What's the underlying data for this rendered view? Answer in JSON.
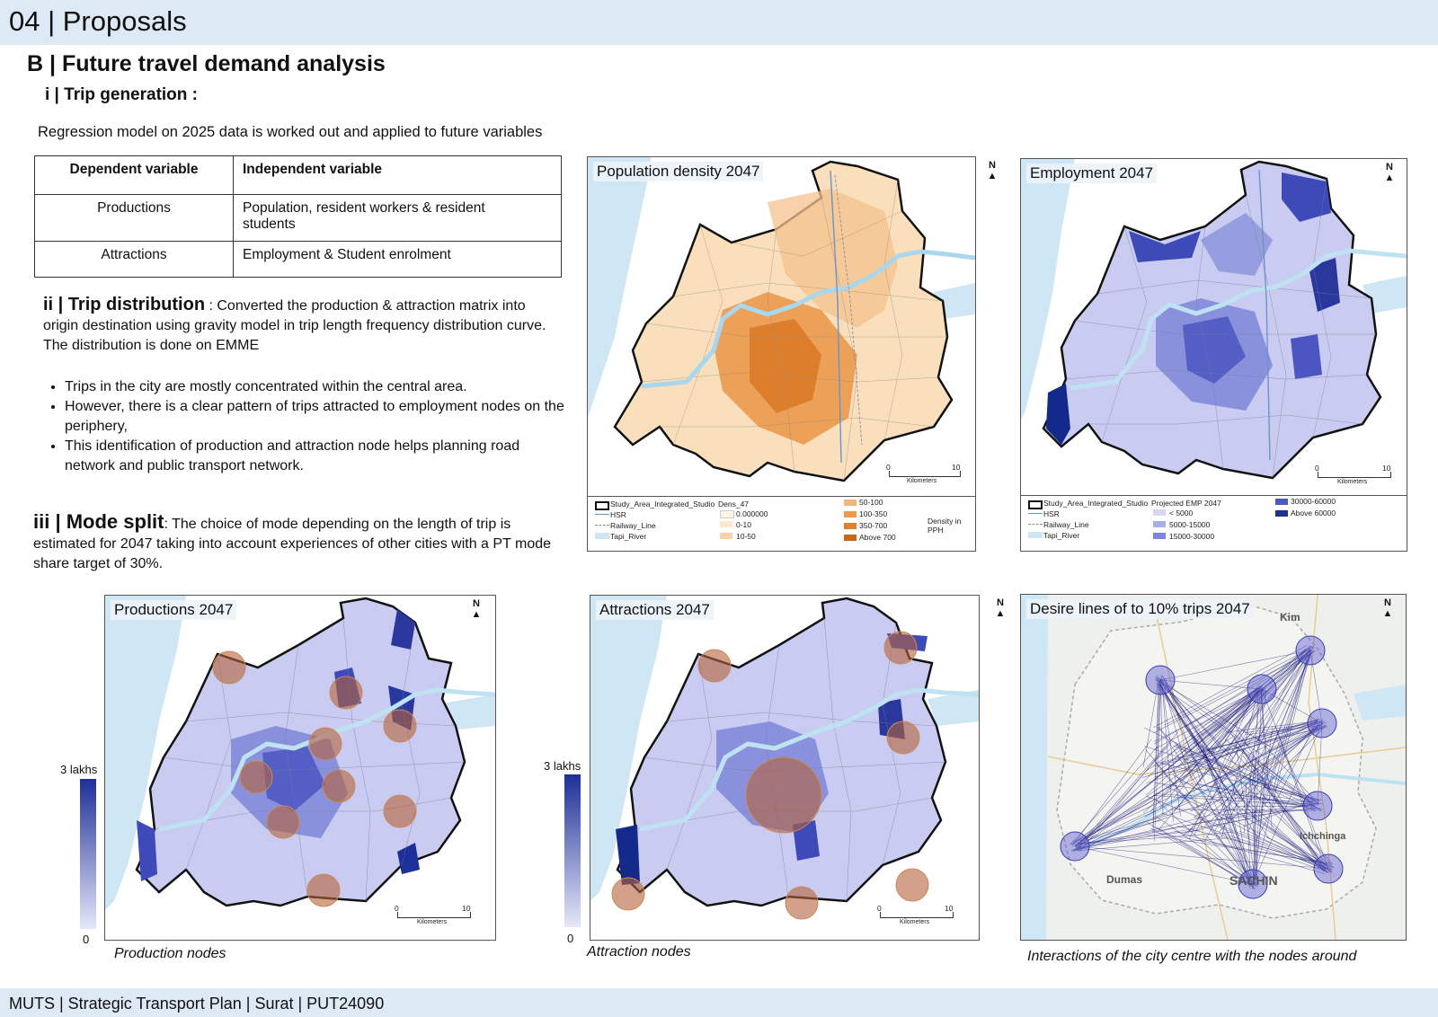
{
  "header": {
    "title": "04 | Proposals"
  },
  "section": {
    "title": "B  | Future travel demand analysis"
  },
  "trip_generation": {
    "title": "i | Trip generation :",
    "description": "Regression model on 2025 data is worked out and applied to future variables",
    "table": {
      "headers": [
        "Dependent variable",
        "Independent variable"
      ],
      "rows": [
        [
          "Productions",
          "Population, resident workers & resident students"
        ],
        [
          "Attractions",
          "Employment & Student enrolment"
        ]
      ]
    }
  },
  "trip_distribution": {
    "title": "ii | Trip distribution",
    "text": " : Converted the production & attraction matrix into origin destination using gravity model in trip length frequency distribution curve. The distribution is done on EMME",
    "bullets": [
      "Trips in the city are mostly concentrated within the central area.",
      "However, there is a clear pattern of trips attracted to employment nodes on the periphery,",
      "This identification of production and attraction node helps planning road network and public transport network."
    ]
  },
  "mode_split": {
    "title": "iii | Mode split",
    "text": ": The choice of mode depending on the length of trip is estimated for 2047 taking into account experiences of other cities with a PT mode share target of 30%."
  },
  "maps": {
    "population": {
      "title": "Population density 2047",
      "north": "N",
      "scale": {
        "start": "0",
        "end": "10",
        "unit": "Kilometers"
      },
      "legend": {
        "study_area": "Study_Area_Integrated_Studio",
        "hsr": "HSR",
        "railway": "Railway_Line",
        "river": "Tapi_River",
        "class_title": "Dens_47",
        "classes": [
          "0.000000",
          "0-10",
          "10-50",
          "50-100",
          "100-350",
          "350-700",
          "Above 700"
        ],
        "unit": "Density in PPH"
      },
      "colors": [
        "#fdf4e6",
        "#fce8cf",
        "#f9d3a7",
        "#f4b679",
        "#ee9a4e",
        "#e07f2c",
        "#c9661a"
      ]
    },
    "employment": {
      "title": "Employment 2047",
      "north": "N",
      "scale": {
        "start": "0",
        "end": "10",
        "unit": "Kilometers"
      },
      "legend": {
        "study_area": "Study_Area_Integrated_Studio",
        "hsr": "HSR",
        "railway": "Railway_Line",
        "river": "Tapi_River",
        "class_title": "Projected EMP 2047",
        "classes": [
          "< 5000",
          "5000-15000",
          "15000-30000",
          "30000-60000",
          "Above 60000"
        ]
      },
      "colors": [
        "#d4d6f2",
        "#a8aee6",
        "#7d84d9",
        "#4c58c6",
        "#1d2f98"
      ]
    },
    "productions": {
      "title": "Productions 2047",
      "north": "N",
      "scale_max": "3 lakhs",
      "scale_min": "0",
      "scale": {
        "start": "0",
        "end": "10",
        "unit": "Kilometers"
      },
      "caption": "Production nodes"
    },
    "attractions": {
      "title": "Attractions 2047",
      "north": "N",
      "scale_max": "3 lakhs",
      "scale_min": "0",
      "scale": {
        "start": "0",
        "end": "10",
        "unit": "Kilometers"
      },
      "caption": "Attraction nodes"
    },
    "desire": {
      "title": "Desire lines of to 10% trips 2047",
      "north": "N",
      "places": [
        "Kim",
        "Dumas",
        "SACHIN",
        "Ichchinga"
      ],
      "caption": "Interactions of the city centre with the nodes around"
    }
  },
  "footer": {
    "text": "MUTS | Strategic Transport Plan | Surat | PUT24090"
  }
}
